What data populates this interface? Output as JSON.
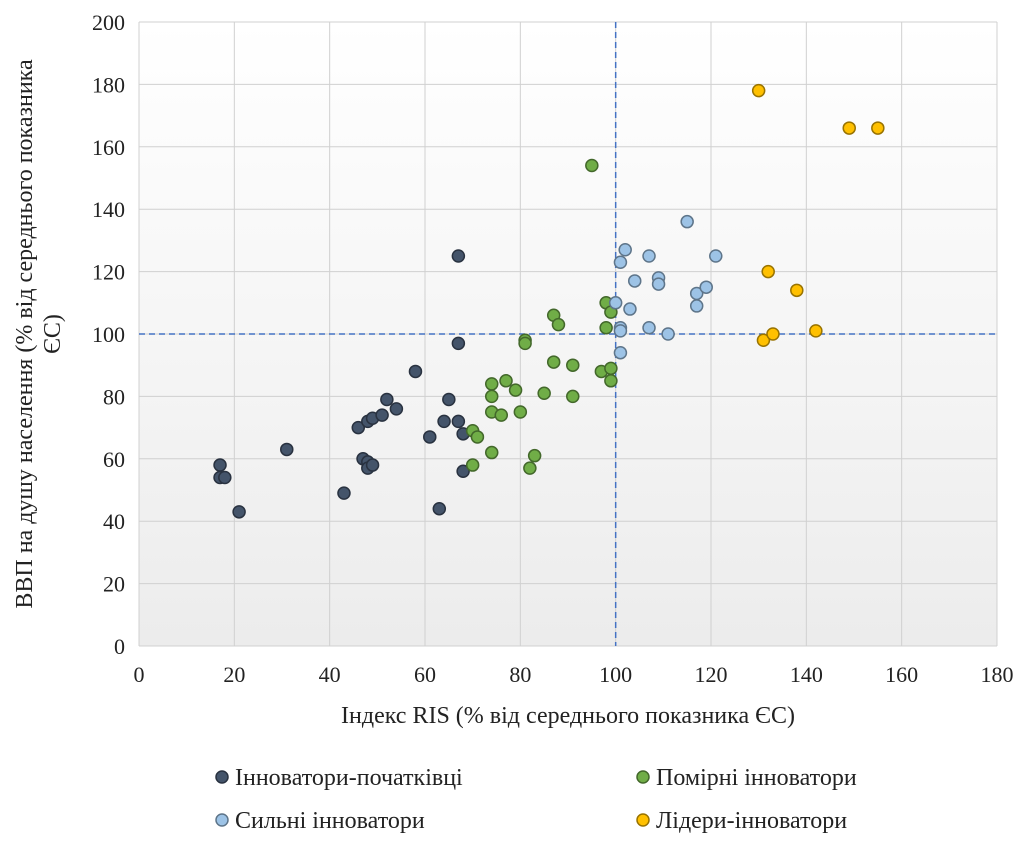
{
  "chart_data": {
    "type": "scatter",
    "title": "",
    "xlabel": "Індекс RIS (% від середнього показника ЄС)",
    "ylabel": "ВВП на душу населення (% від середнього показника ЄС)",
    "xlim": [
      0,
      180
    ],
    "ylim": [
      0,
      200
    ],
    "xticks": [
      "0",
      "20",
      "40",
      "60",
      "80",
      "100",
      "120",
      "140",
      "160",
      "180"
    ],
    "yticks": [
      "0",
      "20",
      "40",
      "60",
      "80",
      "100",
      "120",
      "140",
      "160",
      "180",
      "200"
    ],
    "grid": true,
    "legend_position": "bottom",
    "reference_lines": {
      "x": 100,
      "y": 100,
      "color": "#4472C4",
      "style": "dashed"
    },
    "series": [
      {
        "name": "Інноватори-початківці",
        "color": "#44546A",
        "points": [
          [
            17,
            58
          ],
          [
            17,
            54
          ],
          [
            18,
            54
          ],
          [
            21,
            43
          ],
          [
            31,
            63
          ],
          [
            43,
            49
          ],
          [
            46,
            70
          ],
          [
            47,
            60
          ],
          [
            48,
            72
          ],
          [
            48,
            59
          ],
          [
            48,
            57
          ],
          [
            49,
            73
          ],
          [
            49,
            58
          ],
          [
            51,
            74
          ],
          [
            52,
            79
          ],
          [
            54,
            76
          ],
          [
            58,
            88
          ],
          [
            61,
            67
          ],
          [
            63,
            44
          ],
          [
            64,
            72
          ],
          [
            65,
            79
          ],
          [
            67,
            125
          ],
          [
            67,
            97
          ],
          [
            67,
            72
          ],
          [
            68,
            68
          ],
          [
            68,
            56
          ]
        ]
      },
      {
        "name": "Помірні інноватори",
        "color": "#70AD47",
        "points": [
          [
            70,
            69
          ],
          [
            70,
            58
          ],
          [
            71,
            67
          ],
          [
            74,
            84
          ],
          [
            74,
            80
          ],
          [
            74,
            75
          ],
          [
            74,
            62
          ],
          [
            76,
            74
          ],
          [
            77,
            85
          ],
          [
            79,
            82
          ],
          [
            80,
            75
          ],
          [
            81,
            98
          ],
          [
            81,
            97
          ],
          [
            82,
            57
          ],
          [
            83,
            61
          ],
          [
            85,
            81
          ],
          [
            87,
            106
          ],
          [
            87,
            91
          ],
          [
            88,
            103
          ],
          [
            91,
            90
          ],
          [
            91,
            80
          ],
          [
            95,
            154
          ],
          [
            97,
            88
          ],
          [
            98,
            110
          ],
          [
            98,
            102
          ],
          [
            99,
            107
          ],
          [
            99,
            89
          ],
          [
            99,
            85
          ]
        ]
      },
      {
        "name": "Сильні інноватори",
        "color": "#9DC3E6",
        "points": [
          [
            100,
            110
          ],
          [
            101,
            123
          ],
          [
            101,
            102
          ],
          [
            101,
            101
          ],
          [
            101,
            94
          ],
          [
            102,
            127
          ],
          [
            103,
            108
          ],
          [
            104,
            117
          ],
          [
            107,
            125
          ],
          [
            107,
            102
          ],
          [
            109,
            118
          ],
          [
            109,
            116
          ],
          [
            111,
            100
          ],
          [
            115,
            136
          ],
          [
            117,
            113
          ],
          [
            117,
            109
          ],
          [
            119,
            115
          ],
          [
            121,
            125
          ]
        ]
      },
      {
        "name": "Лідери-інноватори",
        "color": "#FFC000",
        "points": [
          [
            130,
            178
          ],
          [
            131,
            98
          ],
          [
            132,
            120
          ],
          [
            133,
            100
          ],
          [
            138,
            114
          ],
          [
            142,
            101
          ],
          [
            149,
            166
          ],
          [
            155,
            166
          ]
        ]
      }
    ]
  },
  "colors": {
    "plot_bg_top": "#ffffff",
    "plot_bg_bottom": "#eeeeee",
    "grid": "#d0d0d0",
    "marker_stroke_darken": true
  }
}
